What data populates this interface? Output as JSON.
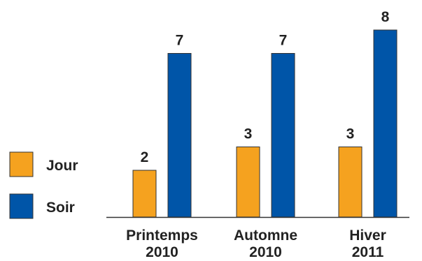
{
  "chart_data": {
    "type": "bar",
    "categories": [
      [
        "Printemps",
        "2010"
      ],
      [
        "Automne",
        "2010"
      ],
      [
        "Hiver",
        "2011"
      ]
    ],
    "series": [
      {
        "name": "Jour",
        "values": [
          2,
          3,
          3
        ],
        "color": "#f5a21f"
      },
      {
        "name": "Soir",
        "values": [
          7,
          7,
          8
        ],
        "color": "#0055a8"
      }
    ],
    "ylim": [
      0,
      8
    ],
    "grid": false,
    "legend_position": "left",
    "data_labels": true
  }
}
